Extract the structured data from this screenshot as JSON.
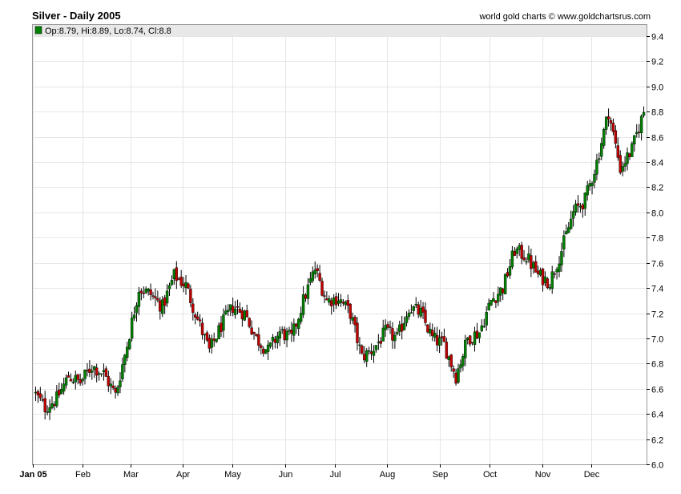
{
  "header": {
    "title": "Silver - Daily 2005",
    "source": "world gold charts © www.goldchartsrus.com"
  },
  "legend": {
    "ohlc_text": "Op:8.79, Hi:8.89, Lo:8.74, Cl:8.8",
    "swatch_color": "#008000"
  },
  "colors": {
    "up": "#008000",
    "down": "#c00000",
    "wick": "#000000",
    "grid": "#e6e6e6",
    "legend_bg": "#e8e8e8"
  },
  "chart_data": {
    "type": "candlestick",
    "title": "Silver - Daily 2005",
    "ylim": [
      6.0,
      9.4
    ],
    "y_ticks": [
      "6.0",
      "6.2",
      "6.4",
      "6.6",
      "6.8",
      "7.0",
      "7.2",
      "7.4",
      "7.6",
      "7.8",
      "8.0",
      "8.2",
      "8.4",
      "8.6",
      "8.8",
      "9.0",
      "9.2",
      "9.4"
    ],
    "x_tick_labels": [
      "Jan 05",
      "Feb",
      "Mar",
      "Apr",
      "May",
      "Jun",
      "Jul",
      "Aug",
      "Sep",
      "Oct",
      "Nov",
      "Dec"
    ],
    "x_tick_week_index": [
      0,
      4.2,
      8.3,
      12.7,
      16.9,
      21.4,
      25.6,
      30.0,
      34.5,
      38.7,
      43.2,
      47.3
    ],
    "weeks_total": 52,
    "grid": true,
    "legend_position": "top-left",
    "weekly_close": [
      6.45,
      6.52,
      6.7,
      6.65,
      6.78,
      6.72,
      6.55,
      6.95,
      7.4,
      7.35,
      7.25,
      7.5,
      7.42,
      7.15,
      6.9,
      7.1,
      7.25,
      7.2,
      7.0,
      6.9,
      7.05,
      7.0,
      7.3,
      7.55,
      7.3,
      7.32,
      7.2,
      6.85,
      6.92,
      7.05,
      7.0,
      7.25,
      7.2,
      7.0,
      6.95,
      6.7,
      7.0,
      7.05,
      7.3,
      7.4,
      7.7,
      7.65,
      7.5,
      7.45,
      7.7,
      8.0,
      8.1,
      8.4,
      8.8,
      8.35,
      8.5,
      8.8
    ]
  }
}
